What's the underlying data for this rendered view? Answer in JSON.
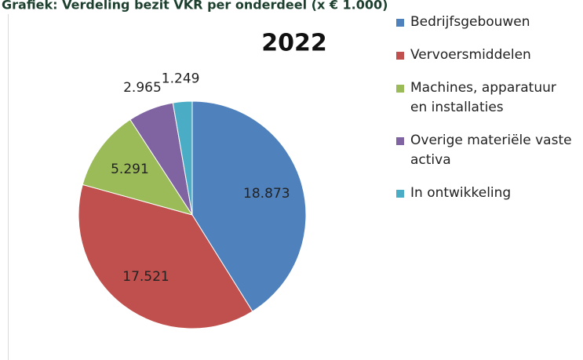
{
  "chart_data": {
    "type": "pie",
    "title": "Grafiek: Verdeling bezit VKR per onderdeel (x € 1.000)",
    "subtitle": "2022",
    "categories": [
      "Bedrijfsgebouwen",
      "Vervoersmiddelen",
      "Machines, apparatuur en installaties",
      "Overige materiële vaste activa",
      "In ontwikkeling"
    ],
    "values": [
      18873,
      17521,
      5291,
      2965,
      1249
    ],
    "value_labels": [
      "18.873",
      "17.521",
      "5.291",
      "2.965",
      "1.249"
    ],
    "colors": [
      "#4f81bd",
      "#c0504d",
      "#9bbb59",
      "#8064a2",
      "#4bacc6"
    ],
    "legend": "right"
  }
}
